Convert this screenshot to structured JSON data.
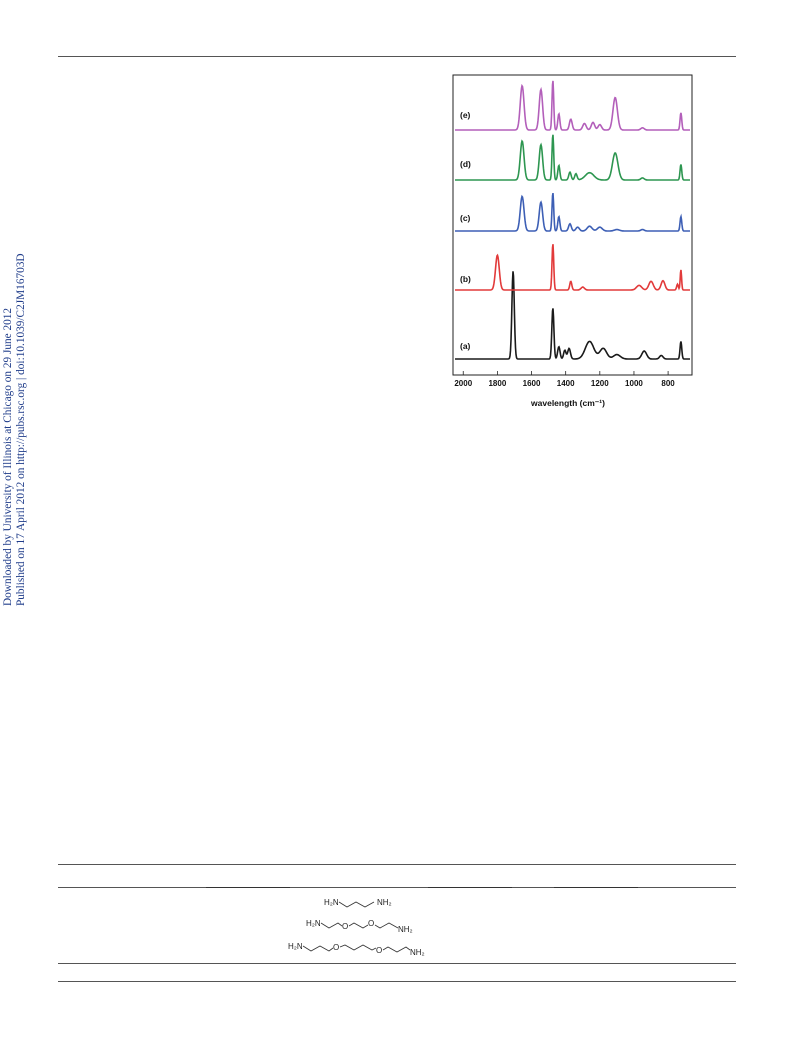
{
  "side_note": {
    "line1": "Downloaded by University of Illinois at Chicago on 29 June 2012",
    "line2": "Published on 17 April 2012 on http://pubs.rsc.org | doi:10.1039/C2JM16703D"
  },
  "chart_data": {
    "type": "line",
    "xlabel": "wavelength (cm⁻¹)",
    "ylabel": "",
    "xlim": [
      2060,
      660
    ],
    "x_reversed": true,
    "xticks": [
      "2000",
      "1800",
      "1600",
      "1400",
      "1200",
      "1000",
      "800"
    ],
    "grid": false,
    "y_ticks_shown": false,
    "series": [
      {
        "name": "(a)",
        "color": "#1a1a1a",
        "peaks": [
          {
            "x": 1708,
            "h": 1.0,
            "w": 7
          },
          {
            "x": 1475,
            "h": 0.58,
            "w": 6
          },
          {
            "x": 1440,
            "h": 0.14,
            "w": 7
          },
          {
            "x": 1405,
            "h": 0.1,
            "w": 7
          },
          {
            "x": 1380,
            "h": 0.12,
            "w": 8
          },
          {
            "x": 1260,
            "h": 0.2,
            "w": 25
          },
          {
            "x": 1180,
            "h": 0.12,
            "w": 20
          },
          {
            "x": 1100,
            "h": 0.05,
            "w": 20
          },
          {
            "x": 940,
            "h": 0.09,
            "w": 14
          },
          {
            "x": 840,
            "h": 0.04,
            "w": 10
          },
          {
            "x": 725,
            "h": 0.2,
            "w": 5
          }
        ]
      },
      {
        "name": "(b)",
        "color": "#e23a3a",
        "peaks": [
          {
            "x": 1800,
            "h": 0.6,
            "w": 11
          },
          {
            "x": 1475,
            "h": 0.8,
            "w": 5
          },
          {
            "x": 1370,
            "h": 0.15,
            "w": 6
          },
          {
            "x": 1300,
            "h": 0.05,
            "w": 10
          },
          {
            "x": 970,
            "h": 0.08,
            "w": 15
          },
          {
            "x": 900,
            "h": 0.15,
            "w": 13
          },
          {
            "x": 830,
            "h": 0.16,
            "w": 11
          },
          {
            "x": 745,
            "h": 0.1,
            "w": 5
          },
          {
            "x": 725,
            "h": 0.35,
            "w": 4
          }
        ]
      },
      {
        "name": "(c)",
        "color": "#3d5fb5",
        "peaks": [
          {
            "x": 1655,
            "h": 0.72,
            "w": 11
          },
          {
            "x": 1545,
            "h": 0.6,
            "w": 10
          },
          {
            "x": 1475,
            "h": 0.8,
            "w": 5
          },
          {
            "x": 1440,
            "h": 0.3,
            "w": 6
          },
          {
            "x": 1375,
            "h": 0.15,
            "w": 8
          },
          {
            "x": 1330,
            "h": 0.08,
            "w": 10
          },
          {
            "x": 1260,
            "h": 0.1,
            "w": 14
          },
          {
            "x": 1200,
            "h": 0.08,
            "w": 14
          },
          {
            "x": 1100,
            "h": 0.03,
            "w": 15
          },
          {
            "x": 950,
            "h": 0.03,
            "w": 10
          },
          {
            "x": 725,
            "h": 0.3,
            "w": 5
          }
        ]
      },
      {
        "name": "(d)",
        "color": "#2d9650",
        "peaks": [
          {
            "x": 1655,
            "h": 0.75,
            "w": 11
          },
          {
            "x": 1545,
            "h": 0.68,
            "w": 10
          },
          {
            "x": 1475,
            "h": 0.88,
            "w": 5
          },
          {
            "x": 1440,
            "h": 0.28,
            "w": 6
          },
          {
            "x": 1375,
            "h": 0.15,
            "w": 7
          },
          {
            "x": 1340,
            "h": 0.12,
            "w": 7
          },
          {
            "x": 1260,
            "h": 0.14,
            "w": 25
          },
          {
            "x": 1110,
            "h": 0.52,
            "w": 16
          },
          {
            "x": 950,
            "h": 0.04,
            "w": 10
          },
          {
            "x": 725,
            "h": 0.3,
            "w": 5
          }
        ]
      },
      {
        "name": "(e)",
        "color": "#b35fba",
        "peaks": [
          {
            "x": 1655,
            "h": 0.82,
            "w": 11
          },
          {
            "x": 1545,
            "h": 0.75,
            "w": 10
          },
          {
            "x": 1475,
            "h": 0.92,
            "w": 5
          },
          {
            "x": 1440,
            "h": 0.3,
            "w": 6
          },
          {
            "x": 1370,
            "h": 0.2,
            "w": 8
          },
          {
            "x": 1290,
            "h": 0.12,
            "w": 10
          },
          {
            "x": 1240,
            "h": 0.14,
            "w": 10
          },
          {
            "x": 1200,
            "h": 0.1,
            "w": 10
          },
          {
            "x": 1110,
            "h": 0.6,
            "w": 13
          },
          {
            "x": 950,
            "h": 0.04,
            "w": 10
          },
          {
            "x": 725,
            "h": 0.32,
            "w": 5
          }
        ]
      }
    ]
  },
  "chemical_structures": [
    {
      "left": "H₂N",
      "right": "NH₂"
    },
    {
      "left": "H₂N",
      "o1": "O",
      "o2": "O",
      "right": "NH₂"
    },
    {
      "left": "H₂N",
      "o1": "O",
      "o2": "O",
      "right": "NH₂"
    }
  ]
}
